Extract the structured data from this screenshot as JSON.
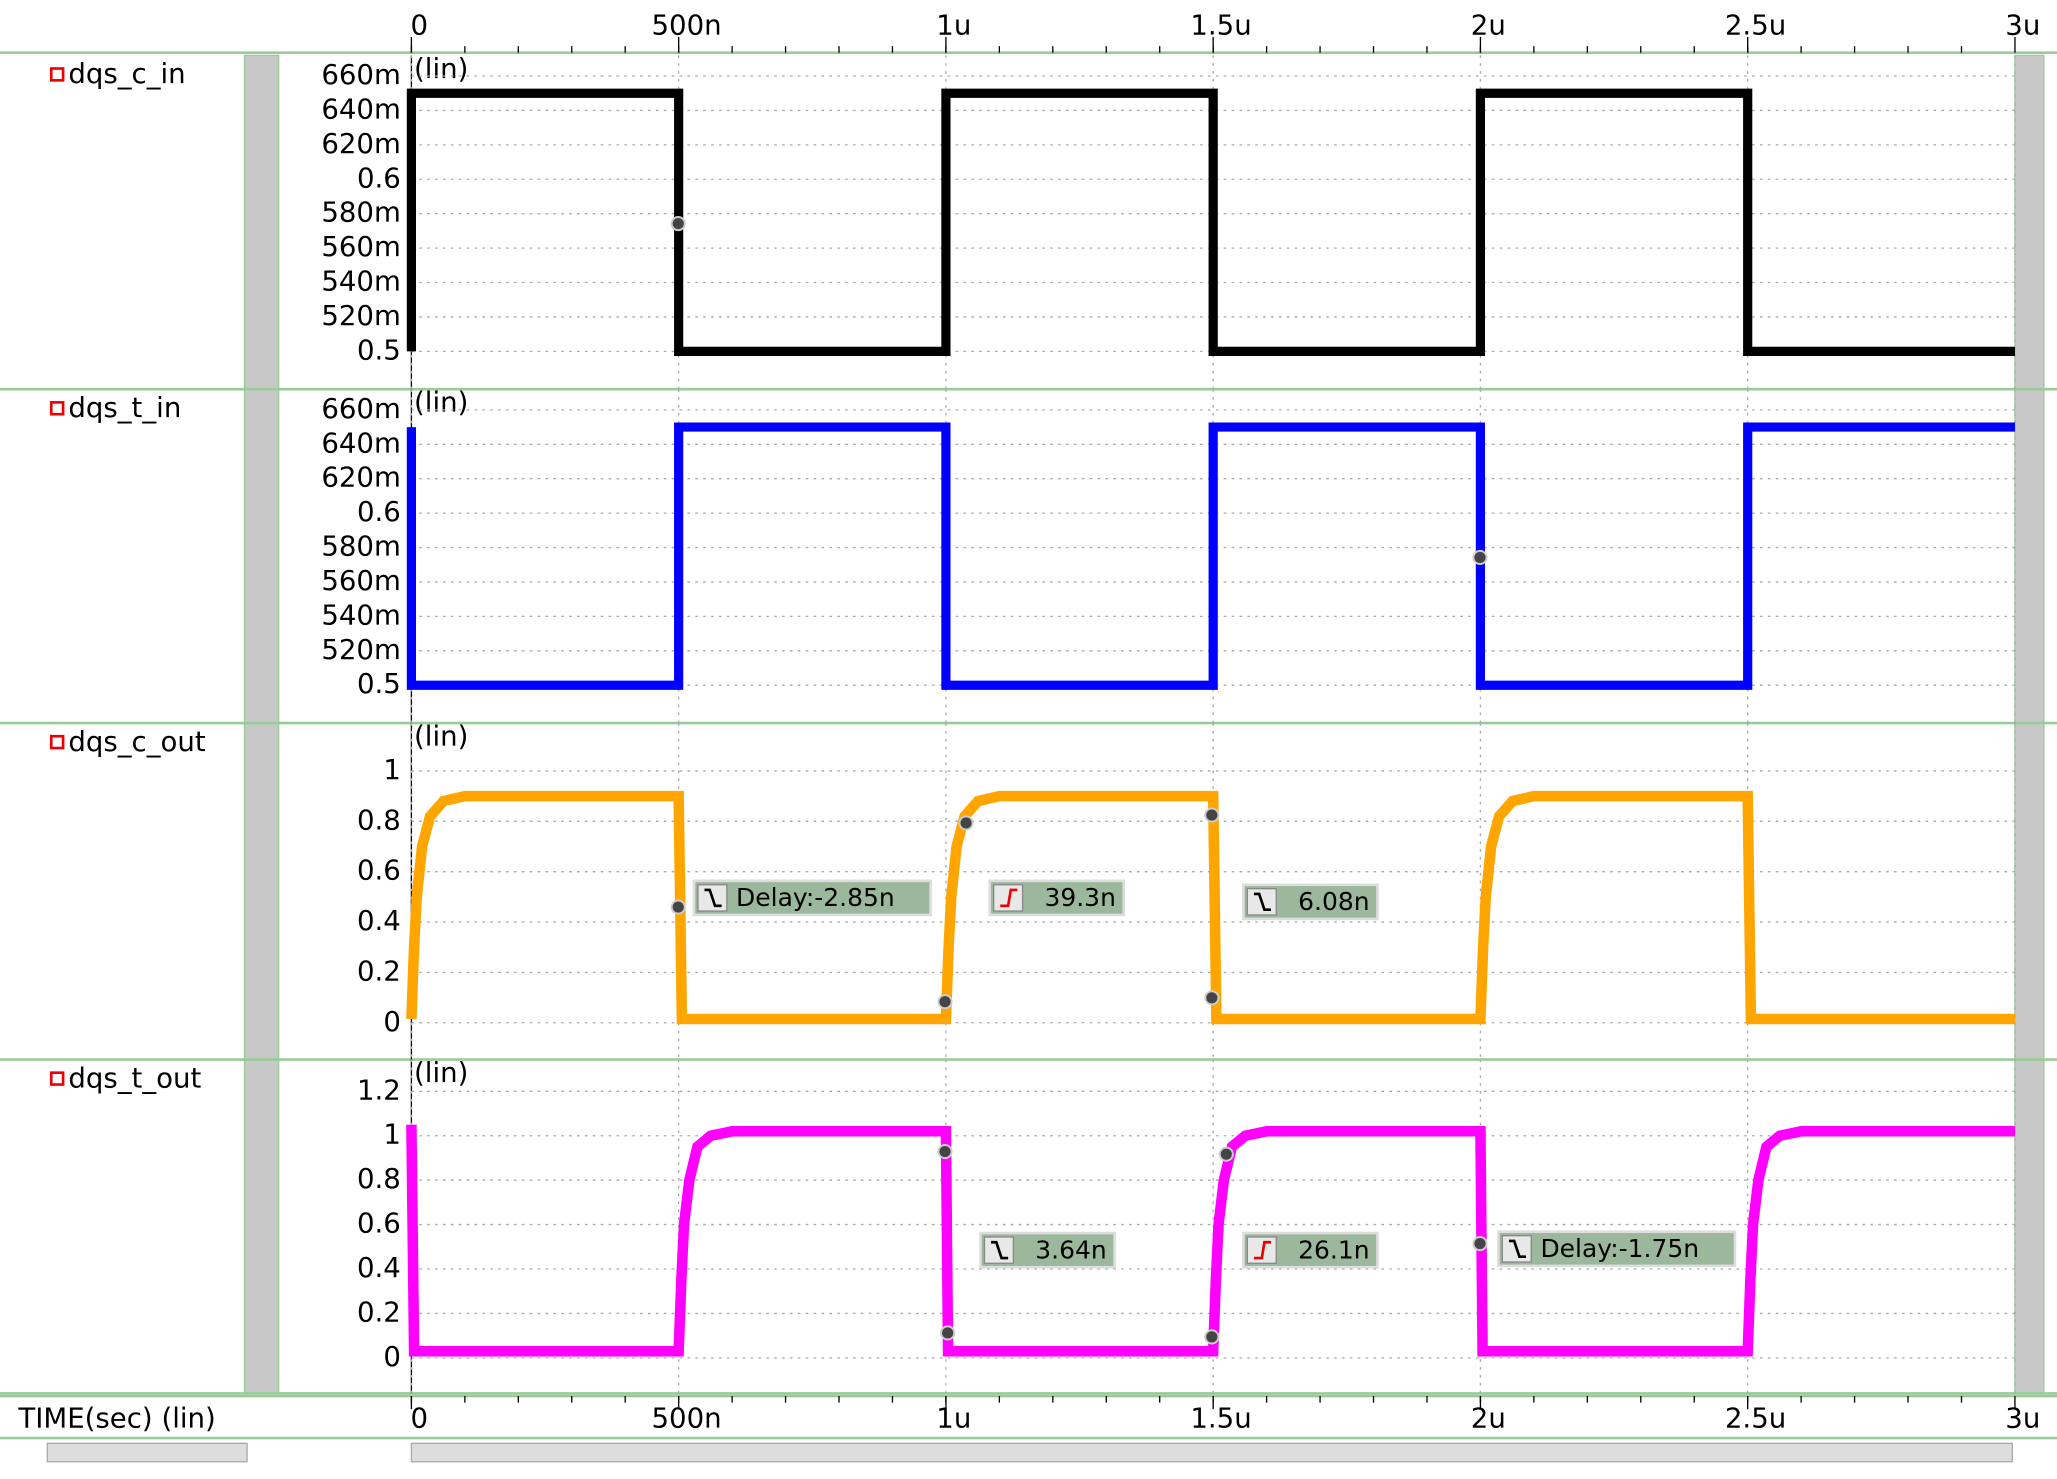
{
  "time_axis": {
    "label": "TIME(sec) (lin)",
    "xlim": [
      0,
      3e-06
    ],
    "xticks": [
      0,
      {
        "value": 5e-07,
        "label": "500n"
      },
      {
        "value": 1e-06,
        "label": "1u"
      },
      {
        "value": 1.5e-06,
        "label": "1.5u"
      },
      {
        "value": 2e-06,
        "label": "2u"
      },
      {
        "value": 2.5e-06,
        "label": "2.5u"
      },
      {
        "value": 3e-06,
        "label": "3u"
      }
    ]
  },
  "chart_data": [
    {
      "type": "line",
      "scale_label": "(lin)",
      "ylim": [
        0.478,
        0.672
      ],
      "grid": true,
      "yticks": [
        {
          "value": 0.66,
          "label": "660m"
        },
        {
          "value": 0.64,
          "label": "640m"
        },
        {
          "value": 0.62,
          "label": "620m"
        },
        0.6,
        {
          "value": 0.58,
          "label": "580m"
        },
        {
          "value": 0.56,
          "label": "560m"
        },
        {
          "value": 0.54,
          "label": "540m"
        },
        {
          "value": 0.52,
          "label": "520m"
        },
        0.5
      ],
      "series": [
        {
          "name": "dqs_c_in",
          "color": "#000000",
          "x": [
            0,
            0,
            5e-07,
            5e-07,
            1e-06,
            1e-06,
            1.5e-06,
            1.5e-06,
            2e-06,
            2e-06,
            2.5e-06,
            2.5e-06,
            3e-06
          ],
          "values": [
            0.5,
            0.65,
            0.65,
            0.5,
            0.5,
            0.65,
            0.65,
            0.5,
            0.5,
            0.65,
            0.65,
            0.5,
            0.5
          ]
        }
      ]
    },
    {
      "type": "line",
      "scale_label": "(lin)",
      "ylim": [
        0.478,
        0.672
      ],
      "grid": true,
      "yticks": [
        {
          "value": 0.66,
          "label": "660m"
        },
        {
          "value": 0.64,
          "label": "640m"
        },
        {
          "value": 0.62,
          "label": "620m"
        },
        0.6,
        {
          "value": 0.58,
          "label": "580m"
        },
        {
          "value": 0.56,
          "label": "560m"
        },
        {
          "value": 0.54,
          "label": "540m"
        },
        {
          "value": 0.52,
          "label": "520m"
        },
        0.5
      ],
      "series": [
        {
          "name": "dqs_t_in",
          "color": "#0000ff",
          "x": [
            0,
            0,
            5e-07,
            5e-07,
            1e-06,
            1e-06,
            1.5e-06,
            1.5e-06,
            2e-06,
            2e-06,
            2.5e-06,
            2.5e-06,
            3e-06
          ],
          "values": [
            0.65,
            0.5,
            0.5,
            0.65,
            0.65,
            0.5,
            0.5,
            0.65,
            0.65,
            0.5,
            0.5,
            0.65,
            0.65
          ]
        }
      ]
    },
    {
      "type": "line",
      "scale_label": "(lin)",
      "ylim": [
        -0.146,
        1.19
      ],
      "grid": true,
      "yticks": [
        1,
        0.8,
        0.6,
        0.4,
        0.2,
        0
      ],
      "measurements": [
        "Delay:-2.85n",
        "39.3n",
        "6.08n"
      ],
      "series": [
        {
          "name": "dqs_c_out",
          "color": "#ffa500",
          "x": [
            0,
            5e-09,
            1e-08,
            2e-08,
            3.5e-08,
            6e-08,
            1e-07,
            5e-07,
            5.06e-07,
            1e-06,
            1.005e-06,
            1.01e-06,
            1.02e-06,
            1.035e-06,
            1.06e-06,
            1.1e-06,
            1.5e-06,
            1.506e-06,
            2e-06,
            2.005e-06,
            2.01e-06,
            2.02e-06,
            2.035e-06,
            2.06e-06,
            2.1e-06,
            2.5e-06,
            2.506e-06,
            3e-06
          ],
          "values": [
            0.015,
            0.3,
            0.5,
            0.7,
            0.82,
            0.88,
            0.9,
            0.9,
            0.015,
            0.015,
            0.3,
            0.5,
            0.7,
            0.82,
            0.88,
            0.9,
            0.9,
            0.015,
            0.015,
            0.3,
            0.5,
            0.7,
            0.82,
            0.88,
            0.9,
            0.9,
            0.015,
            0.015
          ]
        }
      ]
    },
    {
      "type": "line",
      "scale_label": "(lin)",
      "ylim": [
        -0.16,
        1.343
      ],
      "grid": true,
      "yticks": [
        1.2,
        1,
        0.8,
        0.6,
        0.4,
        0.2,
        0
      ],
      "measurements": [
        "3.64n",
        "26.1n",
        "Delay:-1.75n"
      ],
      "series": [
        {
          "name": "dqs_t_out",
          "color": "#ff00ff",
          "x": [
            0,
            5e-09,
            5e-07,
            5.05e-07,
            5.1e-07,
            5.2e-07,
            5.35e-07,
            5.6e-07,
            6e-07,
            1e-06,
            1.004e-06,
            1.5e-06,
            1.505e-06,
            1.51e-06,
            1.52e-06,
            1.535e-06,
            1.56e-06,
            1.6e-06,
            2e-06,
            2.004e-06,
            2.5e-06,
            2.505e-06,
            2.51e-06,
            2.52e-06,
            2.535e-06,
            2.56e-06,
            2.6e-06,
            3e-06
          ],
          "values": [
            1.05,
            0.03,
            0.03,
            0.35,
            0.6,
            0.8,
            0.95,
            1.0,
            1.02,
            1.02,
            0.03,
            0.03,
            0.35,
            0.6,
            0.8,
            0.95,
            1.0,
            1.02,
            1.02,
            0.03,
            0.03,
            0.35,
            0.6,
            0.8,
            0.95,
            1.0,
            1.02,
            1.02
          ]
        }
      ]
    }
  ]
}
